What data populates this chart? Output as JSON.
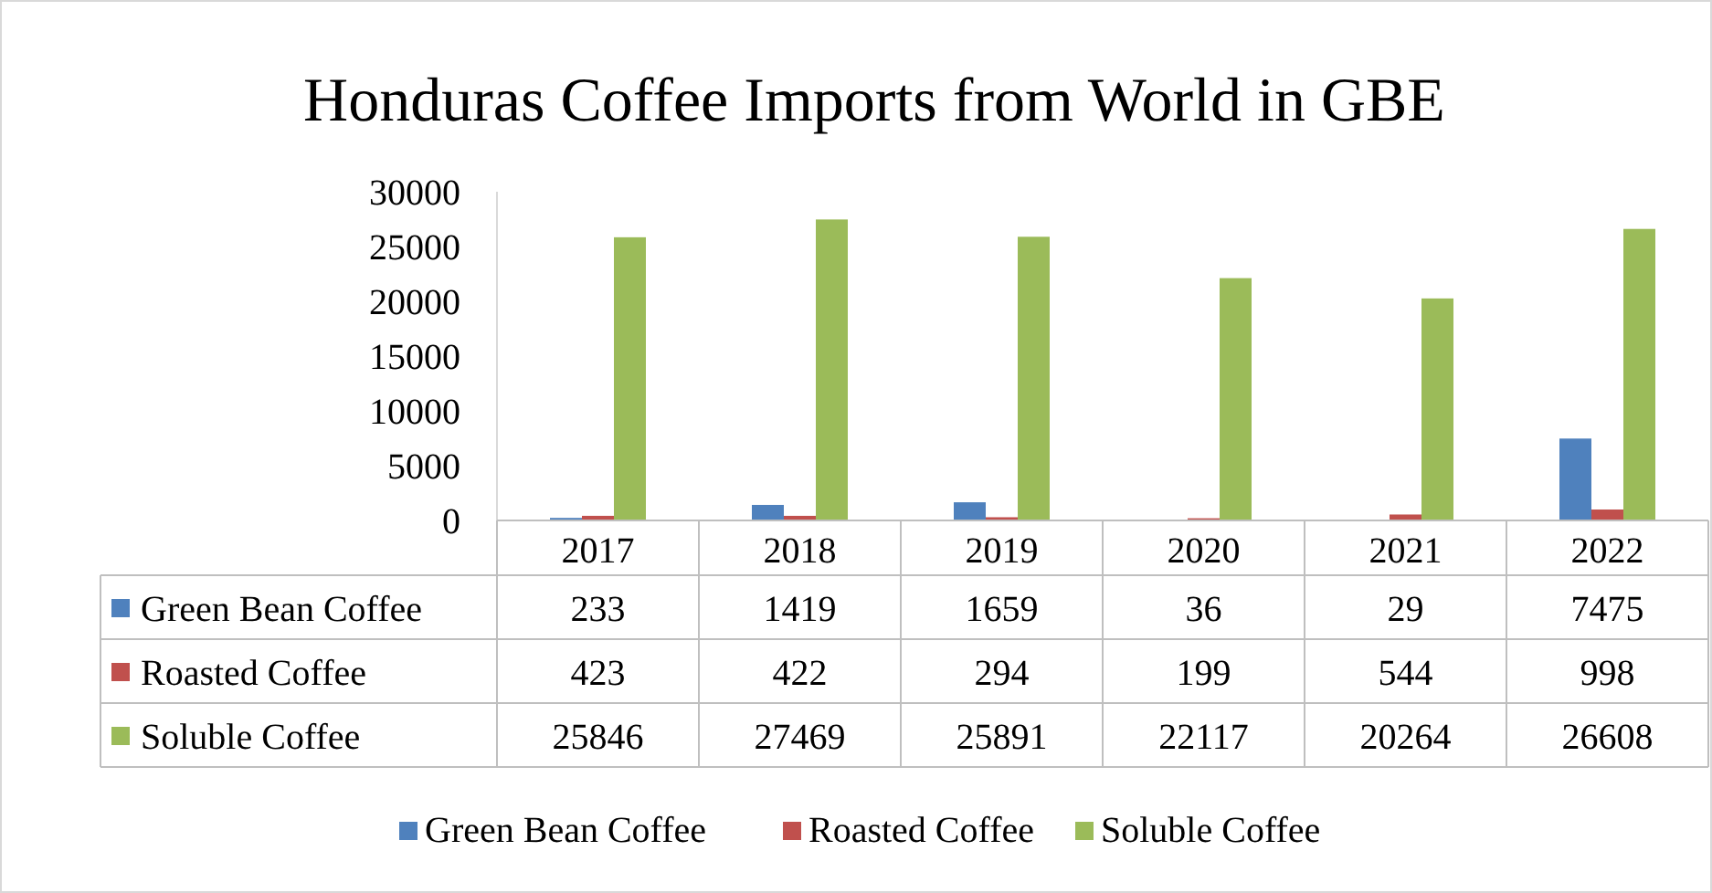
{
  "chart_data": {
    "type": "bar",
    "title": "Honduras Coffee Imports from World in GBE",
    "categories": [
      "2017",
      "2018",
      "2019",
      "2020",
      "2021",
      "2022"
    ],
    "series": [
      {
        "name": "Green Bean Coffee",
        "color": "#4f81bd",
        "values": [
          233,
          1419,
          1659,
          36,
          29,
          7475
        ]
      },
      {
        "name": "Roasted Coffee",
        "color": "#c0504d",
        "values": [
          423,
          422,
          294,
          199,
          544,
          998
        ]
      },
      {
        "name": "Soluble Coffee",
        "color": "#9bbb59",
        "values": [
          25846,
          27469,
          25891,
          22117,
          20264,
          26608
        ]
      }
    ],
    "ylim": [
      0,
      30000
    ],
    "yticks": [
      0,
      5000,
      10000,
      15000,
      20000,
      25000,
      30000
    ],
    "data_labels": true,
    "legend": "bottom"
  }
}
